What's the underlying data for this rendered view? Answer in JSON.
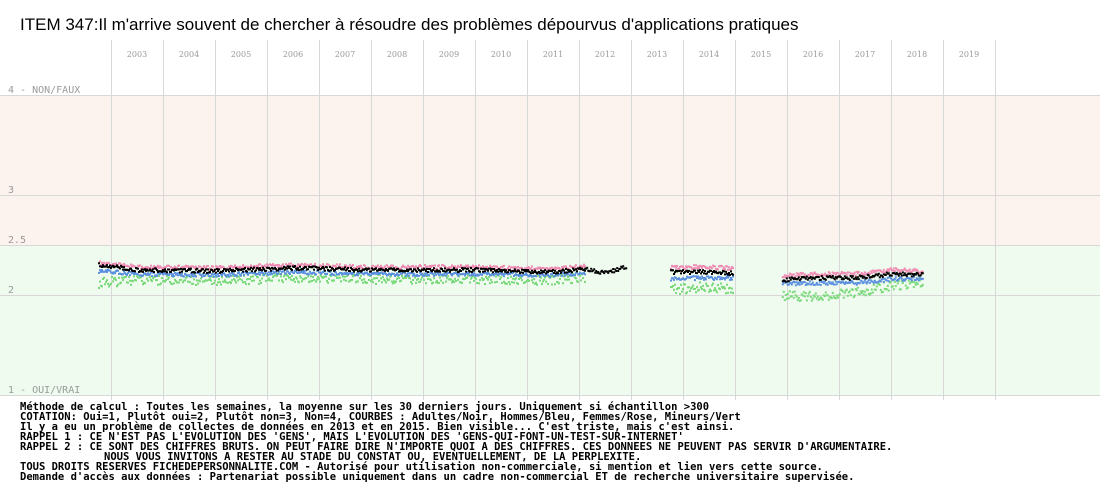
{
  "chart_data": {
    "type": "scatter",
    "title": "ITEM 347:Il m'arrive souvent de chercher à résoudre des problèmes dépourvus d'applications pratiques",
    "x_ticks": [
      "2003",
      "2004",
      "2005",
      "2006",
      "2007",
      "2008",
      "2009",
      "2010",
      "2011",
      "2012",
      "2013",
      "2014",
      "2015",
      "2016",
      "2017",
      "2018",
      "2019"
    ],
    "y_ticks": [
      {
        "value": 4,
        "label": "4 - NON/FAUX"
      },
      {
        "value": 3,
        "label": "3"
      },
      {
        "value": 2.5,
        "label": "2.5"
      },
      {
        "value": 2,
        "label": "2"
      },
      {
        "value": 1,
        "label": "1 - OUI/VRAI"
      }
    ],
    "ylim": [
      1,
      4
    ],
    "bands": [
      {
        "from": 2.5,
        "to": 4,
        "color": "#fdf3ee"
      },
      {
        "from": 1,
        "to": 2.5,
        "color": "#eefbee"
      }
    ],
    "grid": true,
    "series": [
      {
        "name": "Adultes",
        "color": "#000000",
        "segments": [
          {
            "x_start": 2002.75,
            "x_end": 2012.1,
            "points": [
              [
                2002.75,
                2.3
              ],
              [
                2003.5,
                2.25
              ],
              [
                2005,
                2.24
              ],
              [
                2006.5,
                2.27
              ],
              [
                2008,
                2.25
              ],
              [
                2010,
                2.25
              ],
              [
                2011.5,
                2.23
              ],
              [
                2012.1,
                2.26
              ]
            ]
          },
          {
            "x_start": 2012.1,
            "x_end": 2012.9,
            "points": [
              [
                2012.1,
                2.26
              ],
              [
                2012.5,
                2.22
              ],
              [
                2012.9,
                2.28
              ]
            ]
          },
          {
            "x_start": 2013.75,
            "x_end": 2014.95,
            "points": [
              [
                2013.75,
                2.23
              ],
              [
                2014.3,
                2.23
              ],
              [
                2014.95,
                2.22
              ]
            ]
          },
          {
            "x_start": 2015.9,
            "x_end": 2018.6,
            "points": [
              [
                2015.9,
                2.15
              ],
              [
                2016.5,
                2.17
              ],
              [
                2017.3,
                2.17
              ],
              [
                2018,
                2.21
              ],
              [
                2018.6,
                2.2
              ]
            ]
          }
        ]
      },
      {
        "name": "Hommes",
        "color": "#5b8fe0",
        "segments": [
          {
            "x_start": 2002.75,
            "x_end": 2012.1,
            "points": [
              [
                2002.75,
                2.24
              ],
              [
                2003.5,
                2.21
              ],
              [
                2005,
                2.2
              ],
              [
                2006.5,
                2.23
              ],
              [
                2008,
                2.21
              ],
              [
                2010,
                2.21
              ],
              [
                2011.5,
                2.2
              ],
              [
                2012.1,
                2.22
              ]
            ]
          },
          {
            "x_start": 2013.75,
            "x_end": 2014.95,
            "points": [
              [
                2013.75,
                2.16
              ],
              [
                2014.3,
                2.17
              ],
              [
                2014.95,
                2.17
              ]
            ]
          },
          {
            "x_start": 2015.9,
            "x_end": 2018.6,
            "points": [
              [
                2015.9,
                2.11
              ],
              [
                2016.5,
                2.12
              ],
              [
                2017.3,
                2.12
              ],
              [
                2018,
                2.16
              ],
              [
                2018.6,
                2.16
              ]
            ]
          }
        ]
      },
      {
        "name": "Femmes",
        "color": "#f08cb4",
        "segments": [
          {
            "x_start": 2002.75,
            "x_end": 2012.1,
            "points": [
              [
                2002.75,
                2.32
              ],
              [
                2003.5,
                2.28
              ],
              [
                2005,
                2.27
              ],
              [
                2006.5,
                2.3
              ],
              [
                2008,
                2.28
              ],
              [
                2010,
                2.28
              ],
              [
                2011.5,
                2.26
              ],
              [
                2012.1,
                2.29
              ]
            ]
          },
          {
            "x_start": 2013.75,
            "x_end": 2014.95,
            "points": [
              [
                2013.75,
                2.28
              ],
              [
                2014.3,
                2.28
              ],
              [
                2014.95,
                2.27
              ]
            ]
          },
          {
            "x_start": 2015.9,
            "x_end": 2018.6,
            "points": [
              [
                2015.9,
                2.19
              ],
              [
                2016.5,
                2.21
              ],
              [
                2017.3,
                2.21
              ],
              [
                2018,
                2.25
              ],
              [
                2018.6,
                2.24
              ]
            ]
          }
        ]
      },
      {
        "name": "Mineurs",
        "color": "#7ad97a",
        "segments": [
          {
            "x_start": 2002.75,
            "x_end": 2012.1,
            "points": [
              [
                2002.75,
                2.12
              ],
              [
                2003.5,
                2.15
              ],
              [
                2005,
                2.15
              ],
              [
                2006.5,
                2.17
              ],
              [
                2008,
                2.16
              ],
              [
                2010,
                2.16
              ],
              [
                2011.5,
                2.15
              ],
              [
                2012.1,
                2.17
              ]
            ]
          },
          {
            "x_start": 2013.75,
            "x_end": 2014.95,
            "points": [
              [
                2013.75,
                2.05
              ],
              [
                2014.3,
                2.08
              ],
              [
                2014.95,
                2.06
              ]
            ]
          },
          {
            "x_start": 2015.9,
            "x_end": 2018.6,
            "points": [
              [
                2015.9,
                2.0
              ],
              [
                2016.5,
                1.98
              ],
              [
                2017.3,
                2.02
              ],
              [
                2018,
                2.1
              ],
              [
                2018.6,
                2.12
              ]
            ]
          }
        ]
      }
    ]
  },
  "notes": [
    "Méthode de calcul : Toutes les semaines, la moyenne sur les 30 derniers jours. Uniquement si échantillon >300",
    "COTATION: Oui=1, Plutôt oui=2, Plutôt non=3, Non=4, COURBES : Adultes/Noir, Hommes/Bleu, Femmes/Rose, Mineurs/Vert",
    "Il y a eu un problème de collectes de données en 2013 et en 2015. Bien visible... C'est triste, mais c'est ainsi.",
    "RAPPEL 1 : CE N'EST PAS L'EVOLUTION DES 'GENS', MAIS L'EVOLUTION DES 'GENS-QUI-FONT-UN-TEST-SUR-INTERNET'",
    "RAPPEL 2 : CE SONT DES CHIFFRES BRUTS. ON PEUT FAIRE DIRE N'IMPORTE QUOI A DES CHIFFRES. CES DONNEES NE PEUVENT PAS SERVIR D'ARGUMENTAIRE.",
    "NOUS VOUS INVITONS A RESTER AU STADE DU CONSTAT OU, EVENTUELLEMENT,  DE LA PERPLEXITE.",
    "TOUS DROITS RESERVES FICHEDEPERSONNALITE.COM - Autorisé pour utilisation non-commerciale, si mention et lien vers cette source.",
    "Demande d'accès aux données : Partenariat possible uniquement dans un cadre non-commercial ET de recherche universitaire supervisée."
  ]
}
